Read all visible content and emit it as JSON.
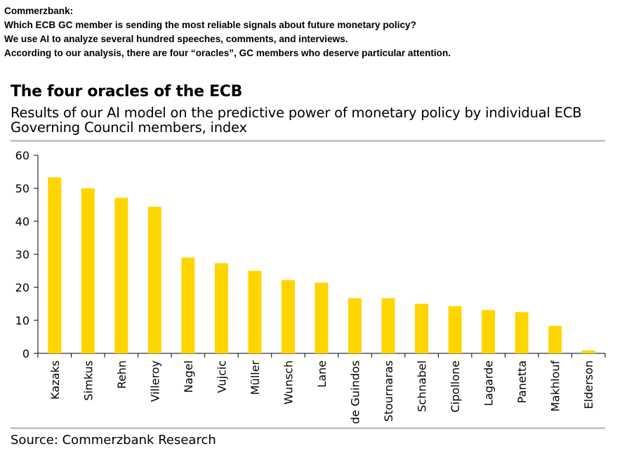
{
  "intro": {
    "lines": [
      "Commerzbank:",
      "Which ECB GC member is sending the most reliable signals about future monetary policy?",
      "We use AI to analyze several hundred speeches, comments, and interviews.",
      "According to our analysis, there are four “oracles”, GC members who deserve particular attention."
    ]
  },
  "source": "Source: Commerzbank Research",
  "colors": {
    "bar": "#FFD500",
    "axis": "#000000",
    "rule": "#c8c8c8"
  },
  "chart_data": {
    "type": "bar",
    "title": "The four oracles of the ECB",
    "subtitle": "Results of our AI model on the predictive power of monetary policy by individual ECB Governing Council members, index",
    "categories": [
      "Kazaks",
      "Simkus",
      "Rehn",
      "Villeroy",
      "Nagel",
      "Vujcic",
      "Müller",
      "Wunsch",
      "Lane",
      "de Guindos",
      "Stournaras",
      "Schnabel",
      "Cipollone",
      "Lagarde",
      "Panetta",
      "Makhlouf",
      "Elderson"
    ],
    "values": [
      53.3,
      50.0,
      47.1,
      44.4,
      29.0,
      27.3,
      25.0,
      22.2,
      21.4,
      16.7,
      16.7,
      15.0,
      14.3,
      13.1,
      12.5,
      8.3,
      0.9
    ],
    "yticks": [
      "0",
      "10",
      "20",
      "30",
      "40",
      "50",
      "60"
    ],
    "ylim": [
      0,
      60
    ],
    "xlabel": "",
    "ylabel": "",
    "grid": false,
    "legend": "none"
  }
}
